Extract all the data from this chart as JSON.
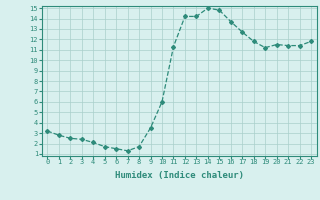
{
  "x": [
    0,
    1,
    2,
    3,
    4,
    5,
    6,
    7,
    8,
    9,
    10,
    11,
    12,
    13,
    14,
    15,
    16,
    17,
    18,
    19,
    20,
    21,
    22,
    23
  ],
  "y": [
    3.2,
    2.8,
    2.5,
    2.4,
    2.1,
    1.7,
    1.5,
    1.3,
    1.7,
    3.5,
    6.0,
    11.3,
    14.2,
    14.2,
    15.0,
    14.8,
    13.7,
    12.7,
    11.8,
    11.2,
    11.5,
    11.4,
    11.4,
    11.8
  ],
  "xlabel": "Humidex (Indice chaleur)",
  "ylim": [
    1,
    15
  ],
  "xlim": [
    -0.5,
    23.5
  ],
  "yticks": [
    1,
    2,
    3,
    4,
    5,
    6,
    7,
    8,
    9,
    10,
    11,
    12,
    13,
    14,
    15
  ],
  "xticks": [
    0,
    1,
    2,
    3,
    4,
    5,
    6,
    7,
    8,
    9,
    10,
    11,
    12,
    13,
    14,
    15,
    16,
    17,
    18,
    19,
    20,
    21,
    22,
    23
  ],
  "line_color": "#2e8b7a",
  "marker": "D",
  "marker_size": 2.0,
  "bg_color": "#d8f0ee",
  "grid_color": "#aacfcb",
  "tick_color": "#2e8b7a",
  "label_color": "#2e8b7a",
  "font_family": "monospace",
  "tick_fontsize": 5.0,
  "xlabel_fontsize": 6.5,
  "linewidth": 0.9
}
